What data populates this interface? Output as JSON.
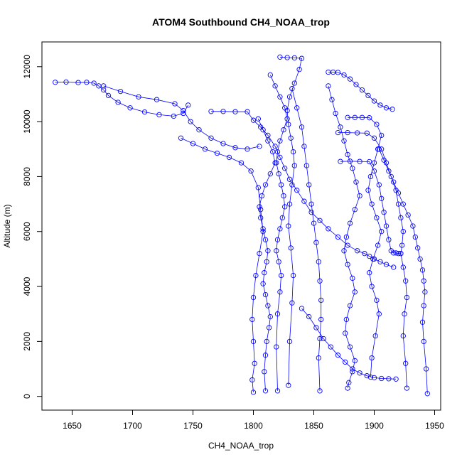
{
  "chart_data": {
    "type": "scatter",
    "title": "ATOM4 Southbound CH4_NOAA_trop",
    "xlabel": "CH4_NOAA_trop",
    "ylabel": "Altitude (m)",
    "xlim": [
      1625,
      1955
    ],
    "ylim": [
      -500,
      12900
    ],
    "x_ticks": [
      1650,
      1700,
      1750,
      1800,
      1850,
      1900,
      1950
    ],
    "y_ticks": [
      0,
      2000,
      4000,
      6000,
      8000,
      10000,
      12000
    ],
    "x_tick_labels": [
      "1650",
      "1700",
      "1750",
      "1800",
      "1850",
      "1900",
      "1950"
    ],
    "y_tick_labels": [
      "0",
      "2000",
      "4000",
      "6000",
      "8000",
      "10000",
      "12000"
    ],
    "grid": false,
    "legend": "none",
    "marker": "open-circle",
    "connect_points": true,
    "color": "#0000ff",
    "series": [
      {
        "x": [
          1636,
          1645,
          1655,
          1662,
          1668,
          1672,
          1676,
          1680,
          1688,
          1698,
          1710,
          1722,
          1734,
          1742,
          1746
        ],
        "y": [
          11430,
          11440,
          11420,
          11430,
          11400,
          11300,
          11150,
          10950,
          10700,
          10500,
          10350,
          10250,
          10200,
          10300,
          10600
        ]
      },
      {
        "x": [
          1676,
          1690,
          1705,
          1720,
          1735,
          1742,
          1748,
          1755,
          1765,
          1775,
          1785,
          1795,
          1805
        ],
        "y": [
          11300,
          11100,
          10900,
          10800,
          10650,
          10400,
          10000,
          9700,
          9400,
          9200,
          9050,
          9000,
          9100
        ]
      },
      {
        "x": [
          1740,
          1750,
          1760,
          1770,
          1780,
          1790,
          1798,
          1804,
          1806,
          1808,
          1805,
          1802,
          1800,
          1799,
          1800,
          1801,
          1799,
          1800
        ],
        "y": [
          9400,
          9200,
          9000,
          8850,
          8700,
          8500,
          8200,
          7600,
          6800,
          6000,
          5200,
          4400,
          3600,
          2800,
          2000,
          1200,
          600,
          150
        ]
      },
      {
        "x": [
          1765,
          1775,
          1785,
          1795,
          1800,
          1806,
          1812,
          1818,
          1822,
          1826,
          1830,
          1836,
          1842,
          1848,
          1855,
          1862,
          1870,
          1878,
          1886,
          1892,
          1896,
          1900,
          1905,
          1910,
          1916
        ],
        "y": [
          10370,
          10370,
          10360,
          10360,
          10050,
          9800,
          9500,
          9100,
          8700,
          8300,
          7900,
          7500,
          7100,
          6700,
          6400,
          6100,
          5800,
          5500,
          5300,
          5200,
          5100,
          5000,
          4900,
          4800,
          4700
        ]
      },
      {
        "x": [
          1804,
          1808,
          1812,
          1816,
          1818,
          1814,
          1810,
          1807,
          1805,
          1806,
          1808,
          1810,
          1812,
          1811,
          1809,
          1808,
          1810,
          1812,
          1814,
          1813,
          1811,
          1810,
          1809,
          1810
        ],
        "y": [
          10100,
          9700,
          9300,
          8900,
          8500,
          8100,
          7700,
          7300,
          6900,
          6500,
          6100,
          5700,
          5300,
          4900,
          4500,
          4100,
          3700,
          3300,
          2900,
          2500,
          2000,
          1500,
          900,
          200
        ]
      },
      {
        "x": [
          1814,
          1818,
          1822,
          1826,
          1828,
          1825,
          1822,
          1820,
          1819,
          1821,
          1823,
          1825,
          1826,
          1824,
          1822,
          1820,
          1819,
          1821,
          1823,
          1822,
          1820,
          1819,
          1820
        ],
        "y": [
          11700,
          11300,
          10900,
          10500,
          10100,
          9700,
          9300,
          8900,
          8500,
          8100,
          7700,
          7300,
          6900,
          6500,
          6100,
          5700,
          5300,
          4900,
          4400,
          3800,
          3000,
          1800,
          200
        ]
      },
      {
        "x": [
          1822,
          1828,
          1834,
          1840,
          1838,
          1834,
          1830,
          1828,
          1829,
          1831,
          1833,
          1834,
          1832,
          1830,
          1829,
          1831,
          1833,
          1832,
          1830,
          1829
        ],
        "y": [
          12350,
          12330,
          12320,
          12300,
          11900,
          11400,
          10900,
          10400,
          9900,
          9400,
          8900,
          8400,
          7700,
          7000,
          6200,
          5400,
          4400,
          3400,
          2000,
          400
        ]
      },
      {
        "x": [
          1832,
          1836,
          1840,
          1842,
          1844,
          1846,
          1848,
          1850,
          1852,
          1854,
          1855,
          1856,
          1856,
          1855,
          1854,
          1855
        ],
        "y": [
          11200,
          10500,
          9800,
          9100,
          8400,
          7700,
          7000,
          6300,
          5600,
          4900,
          4200,
          3500,
          2800,
          2100,
          1400,
          200
        ]
      },
      {
        "x": [
          1862,
          1866,
          1870,
          1875,
          1880,
          1885,
          1890,
          1895,
          1900,
          1905,
          1910,
          1915
        ],
        "y": [
          11800,
          11800,
          11790,
          11700,
          11550,
          11350,
          11150,
          10950,
          10750,
          10600,
          10500,
          10450
        ]
      },
      {
        "x": [
          1862,
          1865,
          1868,
          1872,
          1875,
          1878,
          1882,
          1885,
          1888,
          1884,
          1880,
          1877,
          1875,
          1878,
          1882,
          1884,
          1880,
          1877,
          1876,
          1880,
          1884,
          1882,
          1879,
          1878
        ],
        "y": [
          11300,
          10800,
          10300,
          9800,
          9300,
          8800,
          8300,
          7800,
          7300,
          6800,
          6300,
          5800,
          5300,
          4800,
          4300,
          3800,
          3300,
          2800,
          2300,
          1800,
          1300,
          900,
          500,
          300
        ]
      },
      {
        "x": [
          1878,
          1884,
          1890,
          1896,
          1902,
          1906,
          1903,
          1900,
          1897,
          1895,
          1898,
          1902,
          1906,
          1903,
          1899,
          1896,
          1898,
          1902,
          1904,
          1901,
          1898,
          1897
        ],
        "y": [
          10150,
          10150,
          10150,
          10140,
          9900,
          9500,
          9000,
          8500,
          8000,
          7500,
          7000,
          6500,
          6000,
          5500,
          5000,
          4500,
          4000,
          3500,
          3000,
          2200,
          1400,
          700
        ]
      },
      {
        "x": [
          1870,
          1878,
          1886,
          1894,
          1900,
          1906,
          1910,
          1914,
          1918,
          1920,
          1922,
          1924,
          1923,
          1922,
          1924,
          1926,
          1927,
          1925,
          1924,
          1926,
          1927
        ],
        "y": [
          9600,
          9600,
          9590,
          9580,
          9400,
          9000,
          8500,
          8000,
          7500,
          7000,
          6500,
          6000,
          5500,
          5200,
          4700,
          4200,
          3600,
          3000,
          2200,
          1200,
          300
        ]
      },
      {
        "x": [
          1904,
          1908,
          1912,
          1916,
          1920,
          1924,
          1928,
          1932,
          1934,
          1936,
          1938,
          1940,
          1941,
          1942,
          1941,
          1940,
          1941,
          1943,
          1944
        ],
        "y": [
          9000,
          8600,
          8200,
          7800,
          7400,
          7000,
          6600,
          6200,
          5800,
          5400,
          5000,
          4600,
          4200,
          3800,
          3300,
          2700,
          2000,
          1000,
          100
        ]
      },
      {
        "x": [
          1872,
          1880,
          1888,
          1896,
          1900,
          1904,
          1906,
          1908,
          1910,
          1912,
          1914,
          1916,
          1918,
          1920,
          1922
        ],
        "y": [
          8550,
          8560,
          8550,
          8540,
          8200,
          7700,
          7200,
          6700,
          6200,
          5700,
          5300,
          5220,
          5220,
          5200,
          5200
        ]
      },
      {
        "x": [
          1840,
          1846,
          1852,
          1858,
          1864,
          1870,
          1876,
          1882,
          1888,
          1894,
          1900,
          1906,
          1912,
          1918
        ],
        "y": [
          3200,
          2900,
          2500,
          2100,
          1800,
          1500,
          1250,
          1000,
          850,
          750,
          680,
          650,
          640,
          630
        ]
      }
    ]
  }
}
